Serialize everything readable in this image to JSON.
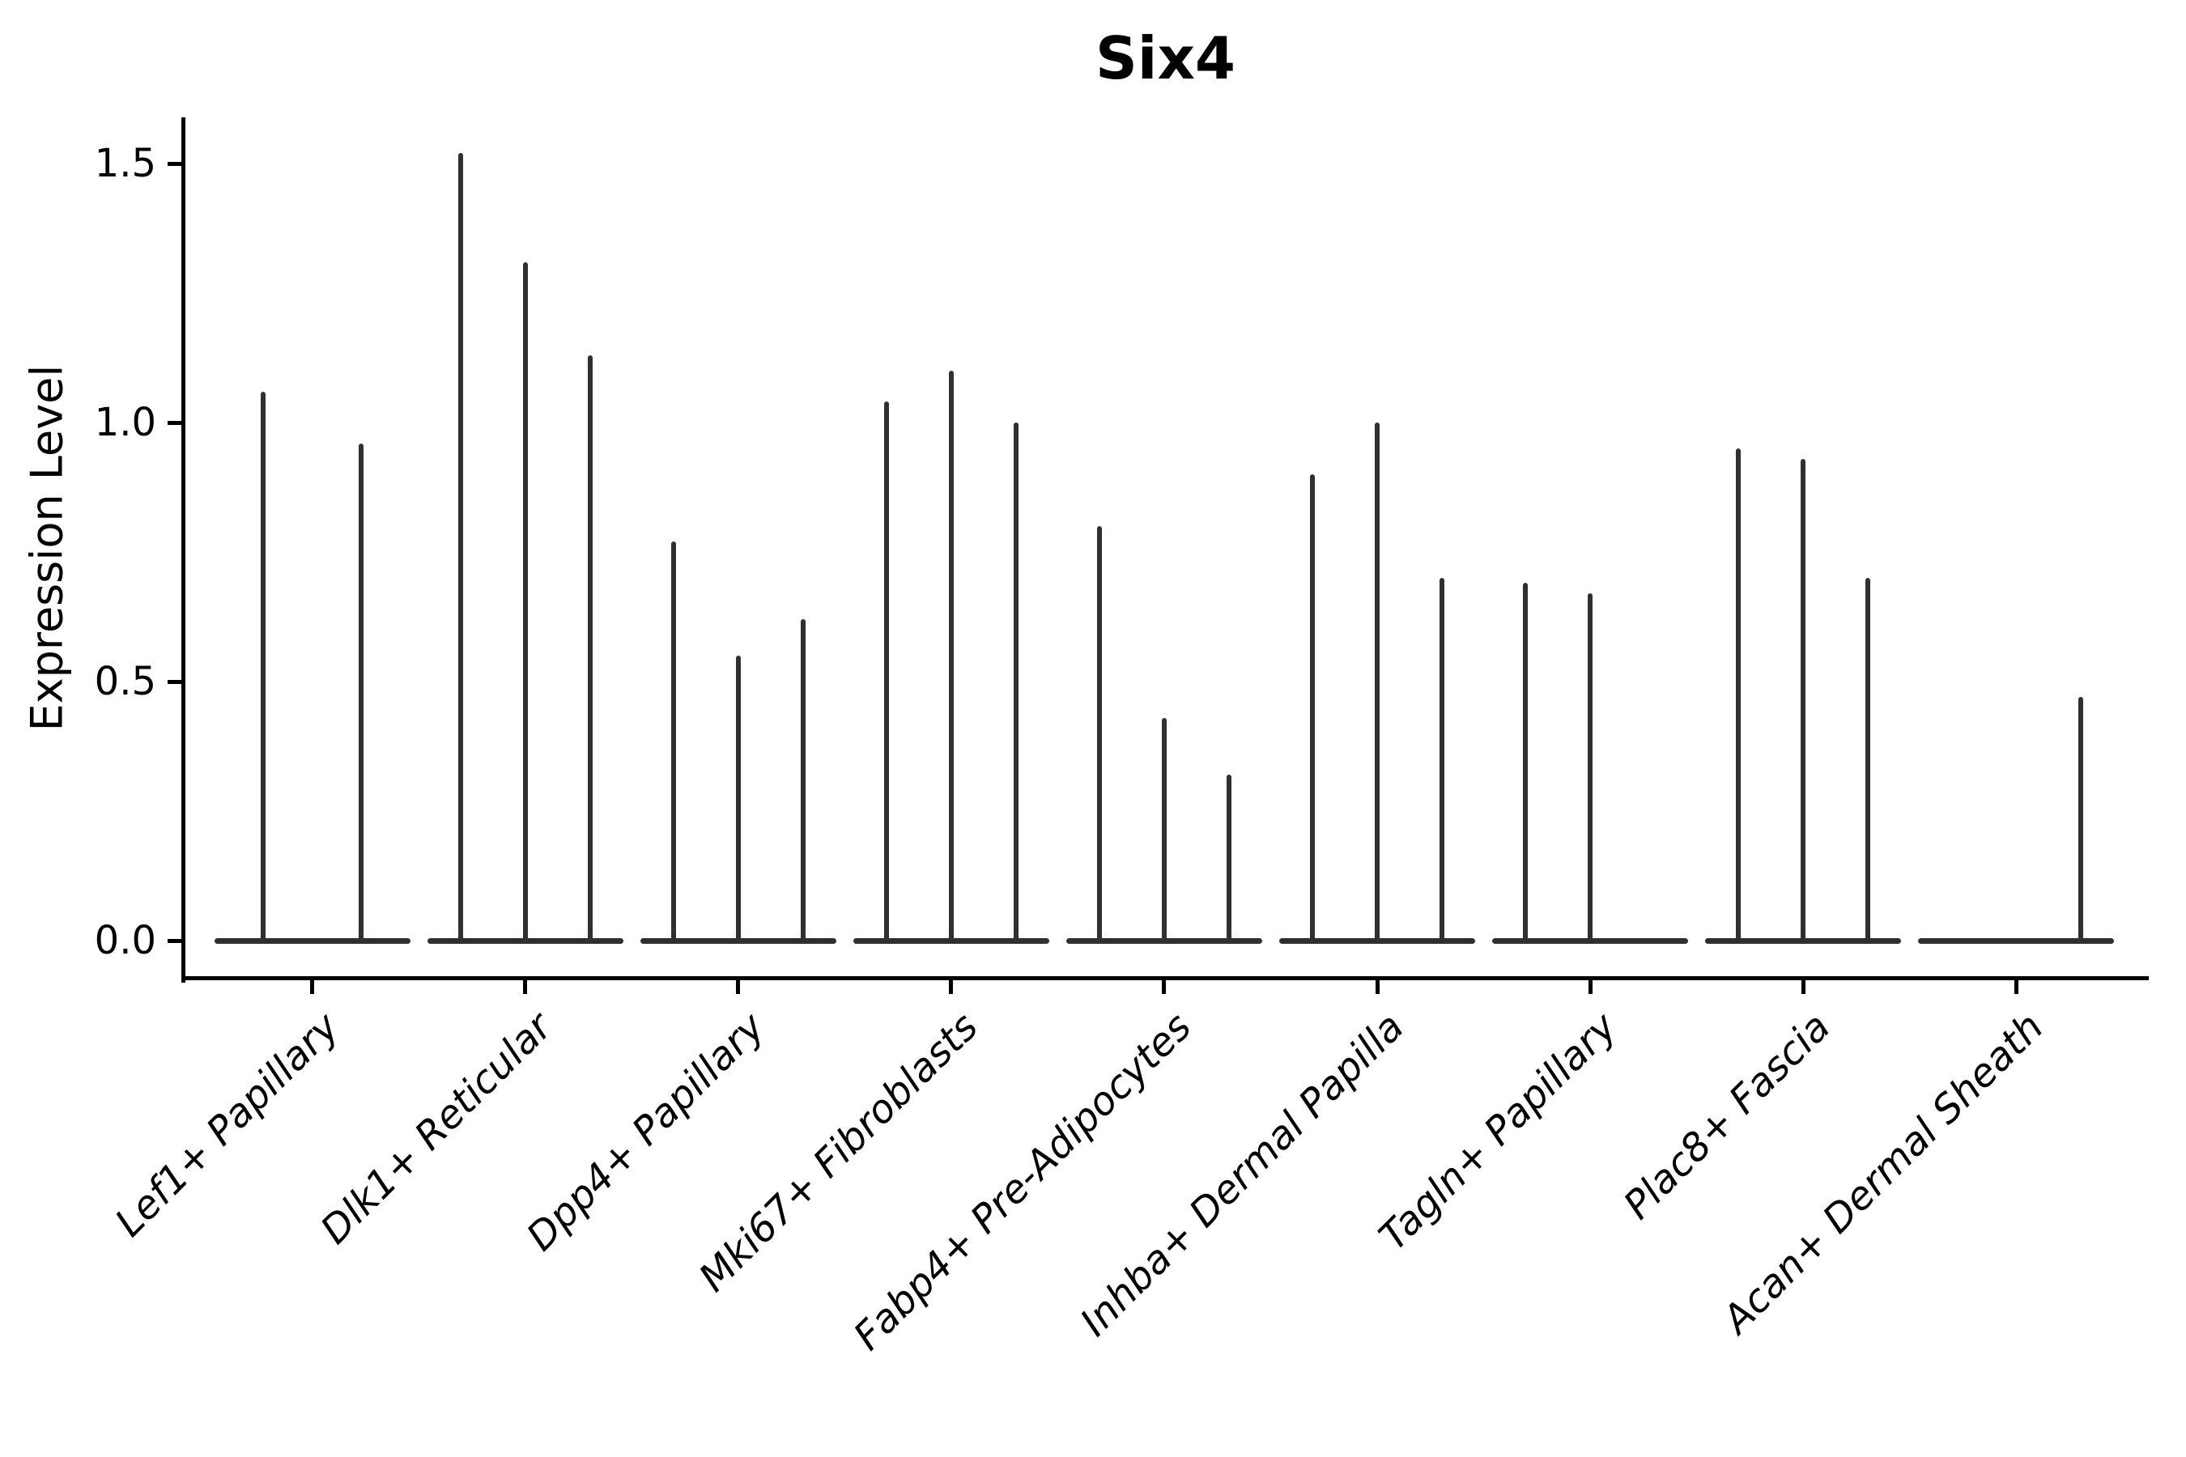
{
  "title": "Six4",
  "y_axis": {
    "label": "Expression Level",
    "tick_labels": [
      "1.5",
      "1.0",
      "0.5",
      "0.0"
    ],
    "tick_values": [
      1.5,
      1.0,
      0.5,
      0.0
    ]
  },
  "x_axis": {
    "tick_labels": [
      "Lef1+ Papillary",
      "Dlk1+ Reticular",
      "Dpp4+ Papillary",
      "Mki67+ Fibroblasts",
      "Fabp4+ Pre-Adipocytes",
      "Inhba+ Dermal Papilla",
      "Tagln+ Papillary",
      "Plac8+ Fascia",
      "Acan+ Dermal Sheath"
    ]
  },
  "chart_data": {
    "type": "violin",
    "title": "Six4",
    "xlabel": "",
    "ylabel": "Expression Level",
    "ylim": [
      0,
      1.58
    ],
    "yticks": [
      0.0,
      0.5,
      1.0,
      1.5
    ],
    "grid": false,
    "legend": "none",
    "style_note": "Seurat-style stacked violin: very thin spike-like violins per split sample, flat dark zero-line per cell-type group, only left and bottom spines, x labels rotated 45deg italic",
    "categories": [
      "Lef1+ Papillary",
      "Dlk1+ Reticular",
      "Dpp4+ Papillary",
      "Mki67+ Fibroblasts",
      "Fabp4+ Pre-Adipocytes",
      "Inhba+ Dermal Papilla",
      "Tagln+ Papillary",
      "Plac8+ Fascia",
      "Acan+ Dermal Sheath"
    ],
    "groups": [
      {
        "label": "Lef1+ Papillary",
        "violins": 2,
        "max_expression": [
          1.06,
          0.96
        ]
      },
      {
        "label": "Dlk1+ Reticular",
        "violins": 3,
        "max_expression": [
          1.52,
          1.31,
          1.13
        ]
      },
      {
        "label": "Dpp4+ Papillary",
        "violins": 3,
        "max_expression": [
          0.77,
          0.55,
          0.62
        ]
      },
      {
        "label": "Mki67+ Fibroblasts",
        "violins": 3,
        "max_expression": [
          1.04,
          1.1,
          1.0
        ]
      },
      {
        "label": "Fabp4+ Pre-Adipocytes",
        "violins": 3,
        "max_expression": [
          0.8,
          0.43,
          0.32
        ]
      },
      {
        "label": "Inhba+ Dermal Papilla",
        "violins": 3,
        "max_expression": [
          0.9,
          1.0,
          0.7
        ]
      },
      {
        "label": "Tagln+ Papillary",
        "violins": 3,
        "max_expression": [
          0.69,
          0.67,
          0.0
        ]
      },
      {
        "label": "Plac8+ Fascia",
        "violins": 3,
        "max_expression": [
          0.95,
          0.93,
          0.7
        ]
      },
      {
        "label": "Acan+ Dermal Sheath",
        "violins": 3,
        "max_expression": [
          0.0,
          0.0,
          0.47
        ]
      }
    ],
    "colors": {
      "violin": "#303030",
      "spine": "#000000",
      "text": "#000000",
      "background": "#ffffff"
    }
  }
}
